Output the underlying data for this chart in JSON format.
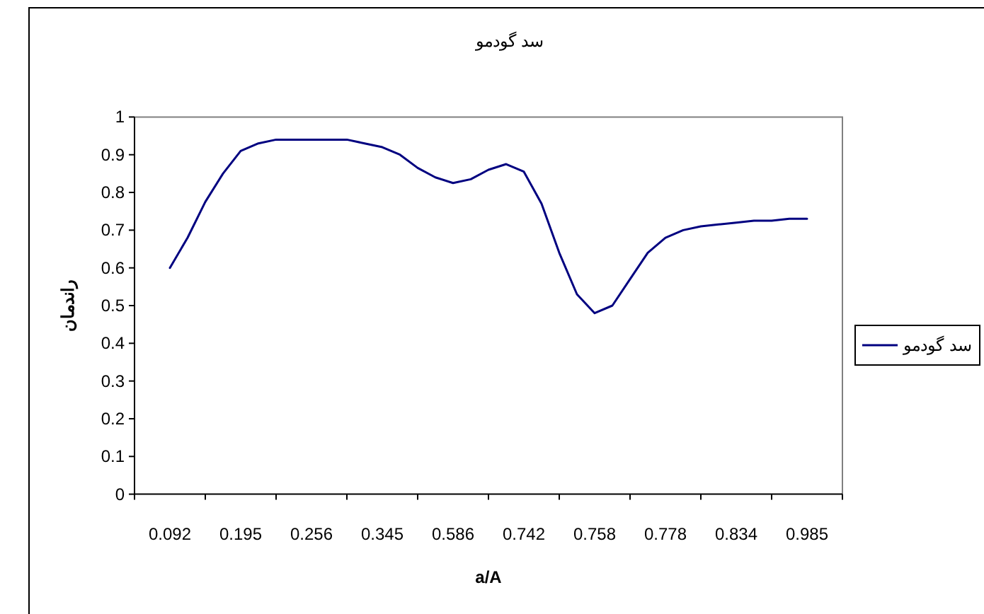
{
  "chart_data": {
    "type": "line",
    "title": "سد گودمو",
    "xlabel": "a/A",
    "ylabel": "راندمان",
    "categories": [
      "0.092",
      null,
      null,
      null,
      "0.195",
      null,
      null,
      null,
      "0.256",
      null,
      null,
      null,
      "0.345",
      null,
      null,
      null,
      "0.586",
      null,
      null,
      null,
      "0.742",
      null,
      null,
      null,
      "0.758",
      null,
      null,
      null,
      "0.778",
      null,
      null,
      null,
      "0.834",
      null,
      null,
      null,
      "0.985"
    ],
    "series": [
      {
        "name": "سد گودمو",
        "color": "#000080",
        "values": [
          0.6,
          0.68,
          0.775,
          0.85,
          0.91,
          0.93,
          0.94,
          0.94,
          0.94,
          0.94,
          0.94,
          0.93,
          0.92,
          0.9,
          0.865,
          0.84,
          0.825,
          0.835,
          0.86,
          0.875,
          0.855,
          0.77,
          0.64,
          0.53,
          0.48,
          0.5,
          0.57,
          0.64,
          0.68,
          0.7,
          0.71,
          0.715,
          0.72,
          0.725,
          0.725,
          0.73,
          0.73
        ]
      }
    ],
    "ylim": [
      0,
      1
    ],
    "yticks": [
      0,
      0.1,
      0.2,
      0.3,
      0.4,
      0.5,
      0.6,
      0.7,
      0.8,
      0.9,
      1
    ],
    "legend": "right"
  }
}
